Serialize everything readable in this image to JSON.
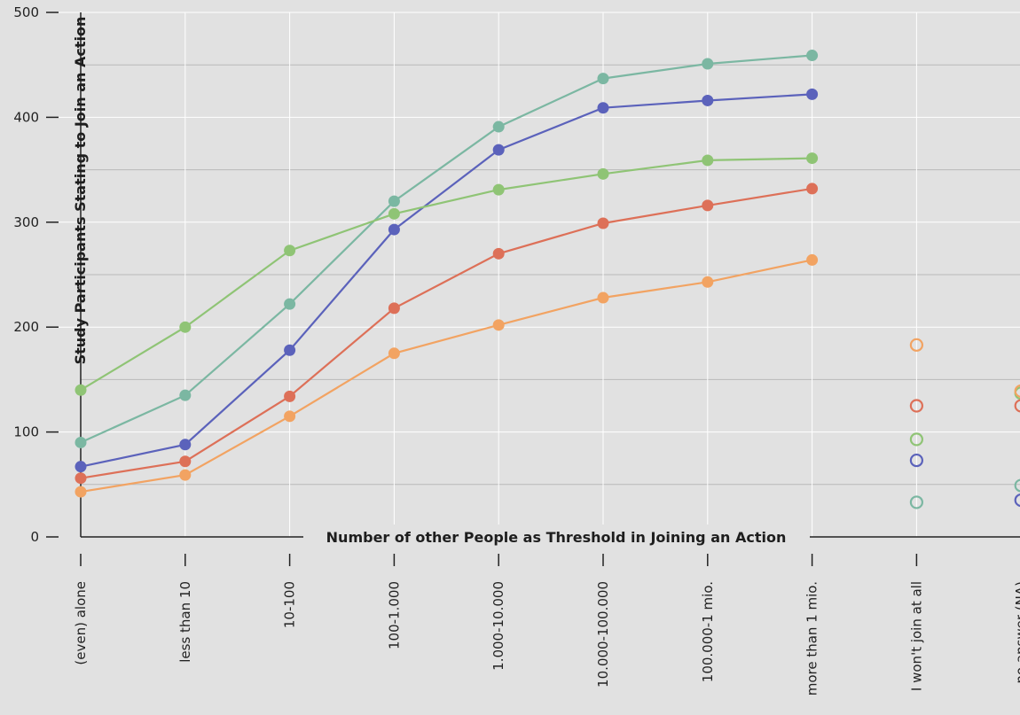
{
  "chart_data": {
    "type": "line",
    "title": "",
    "xlabel": "Number of other People as Threshold in Joining an Action",
    "ylabel": "Study Participants Stating to Join an Action",
    "ylim": [
      0,
      500
    ],
    "yticks": [
      0,
      100,
      200,
      300,
      400,
      500
    ],
    "grid": true,
    "categories": [
      "(even) alone",
      "less than 10",
      "10-100",
      "100-1.000",
      "1.000-10.000",
      "10.000-100.000",
      "100.000-1 mio.",
      "more than 1 mio."
    ],
    "extra_categories": [
      "I won't join at all",
      "no answer (NA)"
    ],
    "series": [
      {
        "color": "#7bb7a2",
        "values": [
          90,
          135,
          222,
          320,
          391,
          437,
          451,
          459
        ],
        "extra_values": [
          33,
          49
        ]
      },
      {
        "color": "#5b62bb",
        "values": [
          67,
          88,
          178,
          293,
          369,
          409,
          416,
          422
        ],
        "extra_values": [
          73,
          35
        ]
      },
      {
        "color": "#8fc475",
        "values": [
          140,
          200,
          273,
          308,
          331,
          346,
          359,
          361
        ],
        "extra_values": [
          93,
          137
        ]
      },
      {
        "color": "#dd7058",
        "values": [
          56,
          72,
          134,
          218,
          270,
          299,
          316,
          332
        ],
        "extra_values": [
          125,
          125
        ]
      },
      {
        "color": "#f2a362",
        "values": [
          43,
          59,
          115,
          175,
          202,
          228,
          243,
          264
        ],
        "extra_values": [
          183,
          139
        ]
      }
    ]
  }
}
